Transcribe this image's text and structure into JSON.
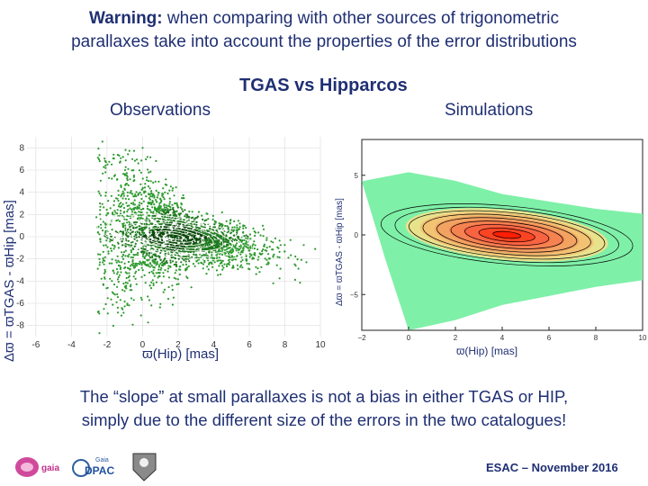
{
  "warning": {
    "bold": "Warning:",
    "line1_rest": " when comparing with other sources of trigonometric",
    "line2": "parallaxes take into account the properties of the error distributions"
  },
  "title": "TGAS vs Hipparcos",
  "observations_label": "Observations",
  "simulations_label": "Simulations",
  "conclusion": {
    "line1": "The “slope” at small parallaxes is not a bias in either TGAS or HIP,",
    "line2": "simply due to the different size of the errors in the two catalogues!"
  },
  "footer": "ESAC – November 2016",
  "logos": {
    "gaia": "gaia",
    "dpac_small": "Gaia",
    "dpac": "DPAC"
  },
  "chart_data": [
    {
      "type": "scatter",
      "title": "Observations",
      "xlabel": "ϖ(Hip)  [mas]",
      "ylabel": "Δϖ = ϖTGAS - ϖHip [mas]",
      "xlim": [
        -6.5,
        10
      ],
      "ylim": [
        -9,
        9
      ],
      "x_ticks": [
        -6,
        -4,
        -2,
        0,
        2,
        4,
        6,
        8,
        10
      ],
      "y_ticks": [
        -8,
        -6,
        -4,
        -2,
        0,
        2,
        4,
        6,
        8
      ],
      "grid": true,
      "colors": {
        "points": "#2f9a2f",
        "dense": "#0a4a0a",
        "contours": "#ffffff"
      },
      "density_center": [
        1.8,
        0
      ],
      "density_ridge_slope": -0.25,
      "contours_count": 8
    },
    {
      "type": "heatmap",
      "title": "Simulations",
      "xlabel": "ϖ(Hip)  [mas]",
      "ylabel": "Δϖ = ϖTGAS - ϖHip [mas]",
      "xlim": [
        -2,
        10
      ],
      "ylim": [
        -8,
        8
      ],
      "x_ticks": [
        -2,
        0,
        2,
        4,
        6,
        8,
        10
      ],
      "y_ticks": [
        -5,
        0,
        5
      ],
      "colors": {
        "background": "#7ff0a8",
        "peak": "#ff1a00",
        "mid": "#f2a060",
        "contours": "#000000"
      },
      "density_center": [
        4.2,
        0
      ],
      "density_ridge_slope": -0.18,
      "contours_count": 9
    }
  ]
}
